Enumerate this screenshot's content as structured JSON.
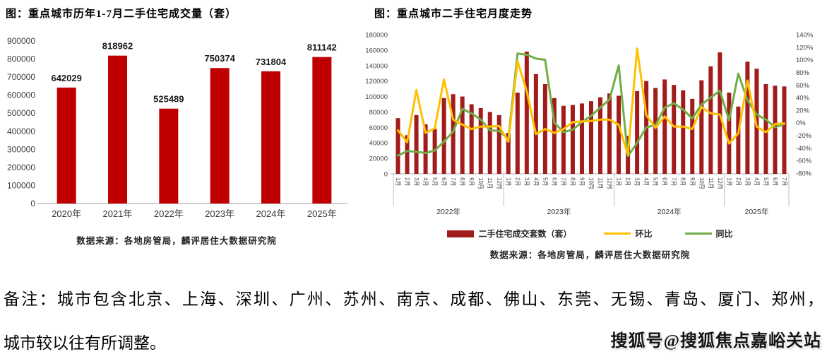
{
  "colors": {
    "left_bar": "#C00000",
    "right_bar": "#A21C1C",
    "mom_line": "#FFC000",
    "yoy_line": "#70AD47",
    "axis_text": "#3f3f3f",
    "axis_line": "#BFBFBF"
  },
  "note": {
    "line1": "备注：城市包含北京、上海、深圳、广州、苏州、南京、成都、佛山、东莞、无锡、青岛、厦门、郑州，",
    "line2": "城市较以往有所调整。"
  },
  "watermark": {
    "text": "搜狐号@搜狐焦点嘉峪关站"
  },
  "chart_data": [
    {
      "type": "bar",
      "title": "图：重点城市历年1-7月二手住宅成交量（套）",
      "source": "数据来源：各地房管局，麟评居住大数据研究院",
      "categories": [
        "2020年",
        "2021年",
        "2022年",
        "2023年",
        "2024年",
        "2025年"
      ],
      "values": [
        642029,
        818962,
        525489,
        750374,
        731804,
        811142
      ],
      "xlabel": "",
      "ylabel": "",
      "ylim": [
        0,
        900000
      ],
      "ytick_step": 100000,
      "grid": false,
      "data_labels": true
    },
    {
      "type": "bar+line",
      "title": "图：重点城市二手住宅月度走势",
      "source": "数据来源：各地房管局，麟评居住大数据研究院",
      "legend_position": "bottom",
      "grid": false,
      "left_axis": {
        "min": 0,
        "max": 180000,
        "step": 20000
      },
      "right_axis": {
        "min": -80,
        "max": 140,
        "step": 20,
        "suffix": "%"
      },
      "years": [
        {
          "label": "2022年",
          "months": [
            "1月",
            "2月",
            "3月",
            "4月",
            "5月",
            "6月",
            "7月",
            "8月",
            "9月",
            "10月",
            "11月",
            "12月"
          ]
        },
        {
          "label": "2023年",
          "months": [
            "1月",
            "2月",
            "3月",
            "4月",
            "5月",
            "6月",
            "7月",
            "8月",
            "9月",
            "10月",
            "11月",
            "12月"
          ]
        },
        {
          "label": "2024年",
          "months": [
            "1月",
            "2月",
            "3月",
            "4月",
            "5月",
            "6月",
            "7月",
            "8月",
            "9月",
            "10月",
            "11月",
            "12月"
          ]
        },
        {
          "label": "2025年",
          "months": [
            "1月",
            "2月",
            "3月",
            "4月",
            "5月",
            "6月",
            "7月"
          ]
        }
      ],
      "series": [
        {
          "name": "二手住宅成交套数（套）",
          "type": "bar",
          "axis": "left",
          "values": [
            72000,
            50000,
            76000,
            64000,
            58000,
            98000,
            103000,
            100000,
            90000,
            85000,
            80000,
            76000,
            53000,
            105000,
            158000,
            129000,
            116000,
            98000,
            88000,
            89000,
            91000,
            94000,
            99000,
            104000,
            101000,
            49000,
            107000,
            120000,
            111000,
            122000,
            115000,
            108000,
            97000,
            121000,
            139000,
            157000,
            105000,
            87000,
            145000,
            136000,
            116000,
            114000,
            113000
          ]
        },
        {
          "name": "环比",
          "type": "line",
          "axis": "right",
          "values": [
            -12,
            -31,
            52,
            -16,
            -9,
            69,
            5,
            -3,
            -10,
            -6,
            -6,
            -5,
            -30,
            98,
            50,
            -18,
            -10,
            -16,
            -10,
            1,
            2,
            3,
            5,
            5,
            -3,
            -51,
            118,
            12,
            -8,
            10,
            -6,
            -6,
            -10,
            25,
            15,
            13,
            -33,
            -17,
            67,
            -6,
            -15,
            -2,
            -1
          ]
        },
        {
          "name": "同比",
          "type": "line",
          "axis": "right",
          "values": [
            -52,
            -45,
            -46,
            -48,
            -44,
            -30,
            -14,
            22,
            15,
            5,
            -12,
            -13,
            -26,
            110,
            108,
            102,
            100,
            0,
            -15,
            -11,
            1,
            11,
            24,
            37,
            91,
            -53,
            -32,
            -7,
            -4,
            24,
            31,
            21,
            7,
            29,
            40,
            51,
            4,
            78,
            36,
            13,
            5,
            -7,
            -2
          ]
        }
      ]
    }
  ]
}
